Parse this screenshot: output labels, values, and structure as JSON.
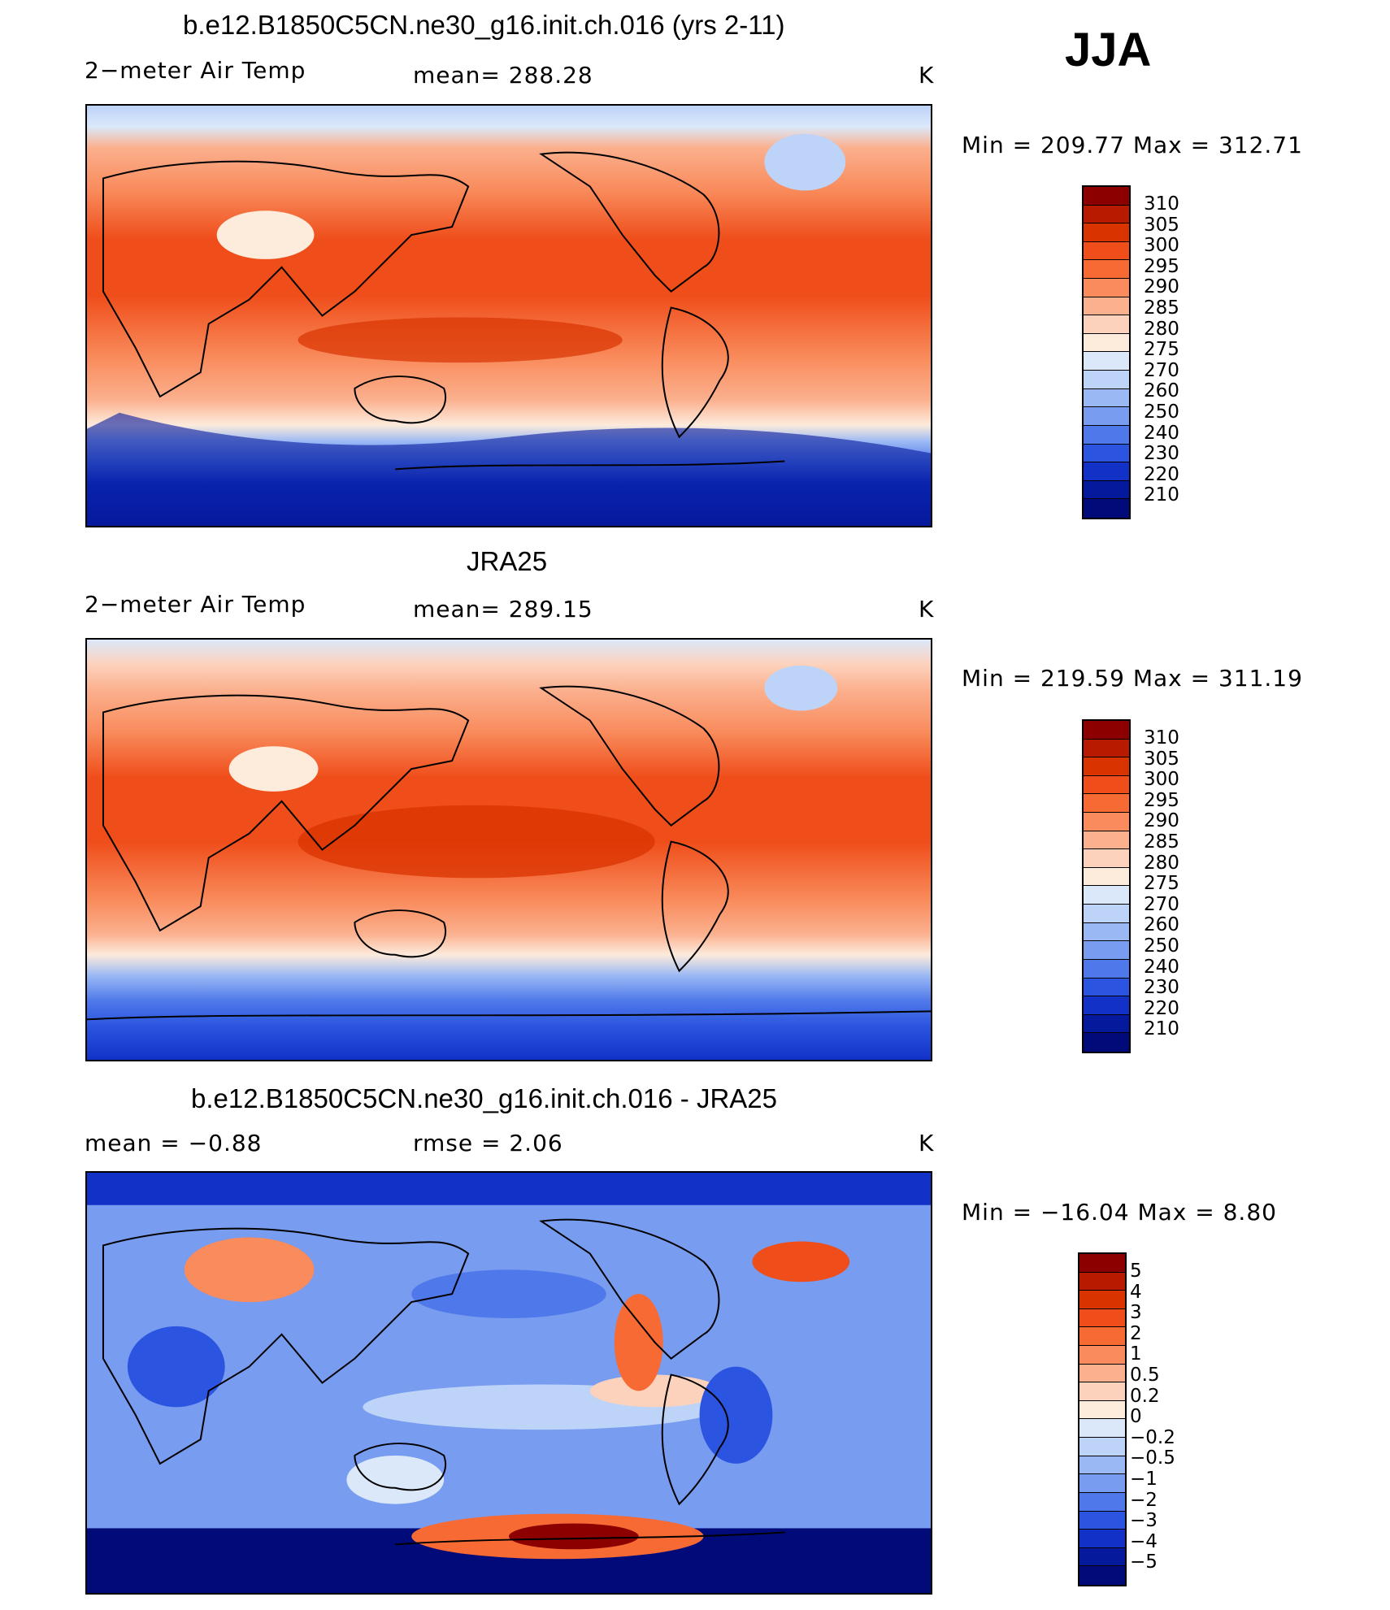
{
  "season": "JJA",
  "units": "K",
  "warm_palette": [
    "#8c0000",
    "#b81a00",
    "#d93300",
    "#ef4d1a",
    "#f76a33",
    "#f98b5c",
    "#fbb08e",
    "#fdd2bc",
    "#fdebdc",
    "#dbe8fa",
    "#bdd3f7",
    "#9ab8f4",
    "#779cf0",
    "#4f79ea",
    "#2b55e0",
    "#1232c7",
    "#05199c",
    "#000a78"
  ],
  "diff_palette": [
    "#8c0000",
    "#b81a00",
    "#d93300",
    "#ef4d1a",
    "#f76a33",
    "#f98b5c",
    "#fbb08e",
    "#fdd2bc",
    "#fdebdc",
    "#dbe8fa",
    "#bdd3f7",
    "#9ab8f4",
    "#779cf0",
    "#4f79ea",
    "#2b55e0",
    "#1232c7",
    "#05199c",
    "#000a78"
  ],
  "panels": [
    {
      "title": "b.e12.B1850C5CN.ne30_g16.init.ch.016 (yrs 2-11)",
      "left_label": "2−meter Air Temp",
      "center_label": "mean=  288.28",
      "right_label": "K",
      "minmax": "Min  =  209.77  Max  =  312.71",
      "levels": [
        "310",
        "305",
        "300",
        "295",
        "290",
        "285",
        "280",
        "275",
        "270",
        "260",
        "250",
        "240",
        "230",
        "220",
        "210"
      ]
    },
    {
      "title": "JRA25",
      "left_label": "2−meter Air Temp",
      "center_label": "mean=  289.15",
      "right_label": "K",
      "minmax": "Min  =  219.59  Max  =  311.19",
      "levels": [
        "310",
        "305",
        "300",
        "295",
        "290",
        "285",
        "280",
        "275",
        "270",
        "260",
        "250",
        "240",
        "230",
        "220",
        "210"
      ]
    },
    {
      "title": "b.e12.B1850C5CN.ne30_g16.init.ch.016 - JRA25",
      "left_label": "mean  =     −0.88",
      "center_label": "rmse  =      2.06",
      "right_label": "K",
      "minmax": "Min  =  −16.04  Max  =      8.80",
      "levels": [
        "5",
        "4",
        "3",
        "2",
        "1",
        "0.5",
        "0.2",
        "0",
        "−0.2",
        "−0.5",
        "−1",
        "−2",
        "−3",
        "−4",
        "−5"
      ]
    }
  ]
}
